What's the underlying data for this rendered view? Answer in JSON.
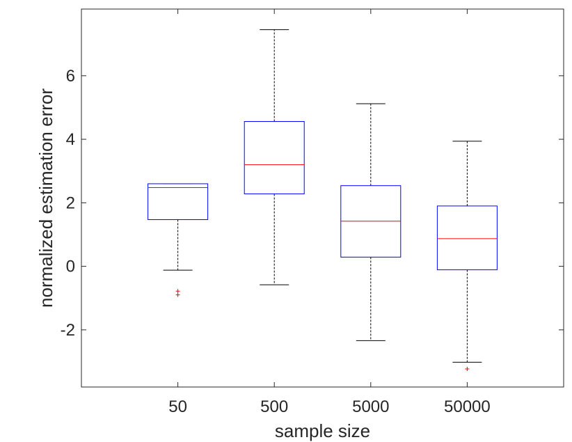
{
  "chart_data": {
    "type": "boxplot",
    "title": "",
    "xlabel": "sample size",
    "ylabel": "normalized estimation error",
    "categories": [
      "50",
      "500",
      "5000",
      "50000"
    ],
    "ylim": [
      -3.8,
      8.1
    ],
    "yticks": [
      -2,
      0,
      2,
      4,
      6
    ],
    "yticklabels": [
      "-2",
      "0",
      "2",
      "4",
      "6"
    ],
    "grid": false,
    "colors": {
      "box": "#0000ff",
      "median": "#ff0000",
      "whisker": "#000000",
      "outlier": "#ff0000",
      "axis": "#262626"
    },
    "boxes": [
      {
        "category": "50",
        "whisker_low": -0.12,
        "q1": 1.47,
        "median": 2.48,
        "q3": 2.6,
        "whisker_high": 2.6,
        "outliers": [
          -0.78,
          -0.9
        ]
      },
      {
        "category": "500",
        "whisker_low": -0.58,
        "q1": 2.28,
        "median": 3.2,
        "q3": 4.56,
        "whisker_high": 7.45,
        "outliers": []
      },
      {
        "category": "5000",
        "whisker_low": -2.34,
        "q1": 0.29,
        "median": 1.42,
        "q3": 2.54,
        "whisker_high": 5.12,
        "outliers": []
      },
      {
        "category": "50000",
        "whisker_low": -3.02,
        "q1": -0.11,
        "median": 0.87,
        "q3": 1.9,
        "whisker_high": 3.94,
        "outliers": [
          -3.23
        ]
      }
    ]
  }
}
